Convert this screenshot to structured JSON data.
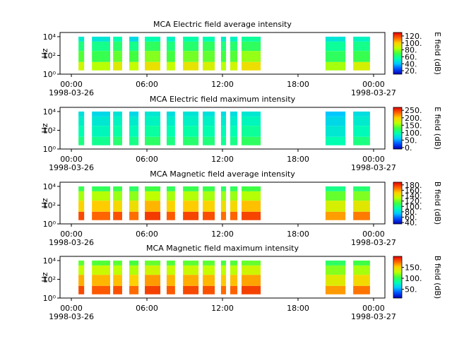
{
  "colormap": [
    "#0000b0",
    "#0050ff",
    "#00c8ff",
    "#00ffb0",
    "#40ff40",
    "#c0ff00",
    "#ffd000",
    "#ff6000",
    "#e00000"
  ],
  "chart_data": [
    {
      "type": "spectrogram",
      "title": "MCA  Electric field average intensity",
      "ylabel": "Hz",
      "colorbar_label": "E field (dB)",
      "log_y": true,
      "xlim": [
        "1998-03-25T23:06",
        "1998-03-27T00:54"
      ],
      "xticks": [
        {
          "value": "1998-03-26T00:00",
          "label": "00:00",
          "date": "1998-03-26"
        },
        {
          "value": "1998-03-26T06:00",
          "label": "06:00"
        },
        {
          "value": "1998-03-26T12:00",
          "label": "12:00"
        },
        {
          "value": "1998-03-26T18:00",
          "label": "18:00"
        },
        {
          "value": "1998-03-27T00:00",
          "label": "00:00",
          "date": "1998-03-27"
        }
      ],
      "ylim": [
        1,
        28000
      ],
      "yticks": [
        {
          "value": 1,
          "label": "10⁰"
        },
        {
          "value": 100,
          "label": "10²"
        },
        {
          "value": 10000,
          "label": "10⁴"
        }
      ],
      "freq_bins": [
        2.5,
        20,
        300,
        3000,
        10000
      ],
      "x_start": [
        "1998-03-26T00:34",
        "1998-03-26T01:38",
        "1998-03-26T03:19",
        "1998-03-26T04:36",
        "1998-03-26T05:50",
        "1998-03-26T07:34",
        "1998-03-26T08:52",
        "1998-03-26T10:26",
        "1998-03-26T11:53",
        "1998-03-26T12:37",
        "1998-03-26T13:31",
        "1998-03-26T20:11",
        "1998-03-26T22:23"
      ],
      "x_end": [
        "1998-03-26T01:01",
        "1998-03-26T03:05",
        "1998-03-26T04:02",
        "1998-03-26T05:20",
        "1998-03-26T07:04",
        "1998-03-26T08:14",
        "1998-03-26T10:06",
        "1998-03-26T11:23",
        "1998-03-26T12:17",
        "1998-03-26T13:11",
        "1998-03-26T15:02",
        "1998-03-26T21:46",
        "1998-03-26T23:43"
      ],
      "z": [
        [
          88,
          72,
          62,
          50
        ],
        [
          84,
          68,
          60,
          48
        ],
        [
          92,
          74,
          64,
          55
        ],
        [
          86,
          70,
          60,
          45
        ],
        [
          95,
          78,
          66,
          55
        ],
        [
          86,
          70,
          62,
          52
        ],
        [
          94,
          76,
          64,
          56
        ],
        [
          90,
          74,
          66,
          55
        ],
        [
          84,
          70,
          62,
          50
        ],
        [
          88,
          72,
          64,
          52
        ],
        [
          96,
          80,
          66,
          58
        ],
        [
          82,
          66,
          58,
          48
        ],
        [
          90,
          68,
          60,
          52
        ]
      ],
      "clim": [
        10,
        130
      ],
      "cticks": [
        {
          "value": 20,
          "label": "20."
        },
        {
          "value": 40,
          "label": "40."
        },
        {
          "value": 60,
          "label": "60."
        },
        {
          "value": 80,
          "label": "80."
        },
        {
          "value": 100,
          "label": "100."
        },
        {
          "value": 120,
          "label": "120."
        }
      ]
    },
    {
      "type": "spectrogram",
      "title": "MCA  Electric field maximum intensity",
      "ylabel": "Hz",
      "colorbar_label": "E field (dB)",
      "log_y": true,
      "xlim": [
        "1998-03-25T23:06",
        "1998-03-27T00:54"
      ],
      "xticks": [
        {
          "value": "1998-03-26T00:00",
          "label": "00:00",
          "date": "1998-03-26"
        },
        {
          "value": "1998-03-26T06:00",
          "label": "06:00"
        },
        {
          "value": "1998-03-26T12:00",
          "label": "12:00"
        },
        {
          "value": "1998-03-26T18:00",
          "label": "18:00"
        },
        {
          "value": "1998-03-27T00:00",
          "label": "00:00",
          "date": "1998-03-27"
        }
      ],
      "ylim": [
        1,
        28000
      ],
      "yticks": [
        {
          "value": 1,
          "label": "10⁰"
        },
        {
          "value": 100,
          "label": "10²"
        },
        {
          "value": 10000,
          "label": "10⁴"
        }
      ],
      "freq_bins": [
        2.5,
        20,
        300,
        3000,
        10000
      ],
      "x_start": [
        "1998-03-26T00:34",
        "1998-03-26T01:38",
        "1998-03-26T03:19",
        "1998-03-26T04:36",
        "1998-03-26T05:50",
        "1998-03-26T07:34",
        "1998-03-26T08:52",
        "1998-03-26T10:26",
        "1998-03-26T11:53",
        "1998-03-26T12:37",
        "1998-03-26T13:31",
        "1998-03-26T20:11",
        "1998-03-26T22:23"
      ],
      "x_end": [
        "1998-03-26T01:01",
        "1998-03-26T03:05",
        "1998-03-26T04:02",
        "1998-03-26T05:20",
        "1998-03-26T07:04",
        "1998-03-26T08:14",
        "1998-03-26T10:06",
        "1998-03-26T11:23",
        "1998-03-26T12:17",
        "1998-03-26T13:11",
        "1998-03-26T15:02",
        "1998-03-26T21:46",
        "1998-03-26T23:43"
      ],
      "z": [
        [
          110,
          95,
          85,
          75
        ],
        [
          105,
          90,
          80,
          70
        ],
        [
          115,
          98,
          88,
          78
        ],
        [
          108,
          92,
          82,
          70
        ],
        [
          118,
          100,
          88,
          80
        ],
        [
          110,
          95,
          84,
          74
        ],
        [
          116,
          98,
          86,
          78
        ],
        [
          112,
          96,
          86,
          76
        ],
        [
          104,
          92,
          82,
          72
        ],
        [
          108,
          94,
          84,
          74
        ],
        [
          120,
          102,
          90,
          80
        ],
        [
          95,
          80,
          70,
          60
        ],
        [
          110,
          92,
          82,
          74
        ]
      ],
      "clim": [
        -10,
        270
      ],
      "cticks": [
        {
          "value": 0,
          "label": "0."
        },
        {
          "value": 50,
          "label": "50."
        },
        {
          "value": 100,
          "label": "100."
        },
        {
          "value": 150,
          "label": "150."
        },
        {
          "value": 200,
          "label": "200."
        },
        {
          "value": 250,
          "label": "250."
        }
      ]
    },
    {
      "type": "spectrogram",
      "title": "MCA  Magnetic field average intensity",
      "ylabel": "Hz",
      "colorbar_label": "B field (dB)",
      "log_y": true,
      "xlim": [
        "1998-03-25T23:06",
        "1998-03-27T00:54"
      ],
      "xticks": [
        {
          "value": "1998-03-26T00:00",
          "label": "00:00",
          "date": "1998-03-26"
        },
        {
          "value": "1998-03-26T06:00",
          "label": "06:00"
        },
        {
          "value": "1998-03-26T12:00",
          "label": "12:00"
        },
        {
          "value": "1998-03-26T18:00",
          "label": "18:00"
        },
        {
          "value": "1998-03-27T00:00",
          "label": "00:00",
          "date": "1998-03-27"
        }
      ],
      "ylim": [
        1,
        28000
      ],
      "yticks": [
        {
          "value": 1,
          "label": "10⁰"
        },
        {
          "value": 100,
          "label": "10²"
        },
        {
          "value": 10000,
          "label": "10⁴"
        }
      ],
      "freq_bins": [
        2.5,
        20,
        300,
        3000,
        10000
      ],
      "x_start": [
        "1998-03-26T00:34",
        "1998-03-26T01:38",
        "1998-03-26T03:19",
        "1998-03-26T04:36",
        "1998-03-26T05:50",
        "1998-03-26T07:34",
        "1998-03-26T08:52",
        "1998-03-26T10:26",
        "1998-03-26T11:53",
        "1998-03-26T12:37",
        "1998-03-26T13:31",
        "1998-03-26T20:11",
        "1998-03-26T22:23"
      ],
      "x_end": [
        "1998-03-26T01:01",
        "1998-03-26T03:05",
        "1998-03-26T04:02",
        "1998-03-26T05:20",
        "1998-03-26T07:04",
        "1998-03-26T08:14",
        "1998-03-26T10:06",
        "1998-03-26T11:23",
        "1998-03-26T12:17",
        "1998-03-26T13:11",
        "1998-03-26T15:02",
        "1998-03-26T21:46",
        "1998-03-26T23:43"
      ],
      "z": [
        [
          175,
          150,
          128,
          110
        ],
        [
          170,
          152,
          130,
          108
        ],
        [
          174,
          148,
          126,
          110
        ],
        [
          168,
          146,
          124,
          106
        ],
        [
          178,
          156,
          132,
          112
        ],
        [
          172,
          150,
          128,
          108
        ],
        [
          176,
          152,
          130,
          110
        ],
        [
          174,
          150,
          128,
          110
        ],
        [
          168,
          146,
          126,
          106
        ],
        [
          170,
          148,
          126,
          108
        ],
        [
          176,
          154,
          130,
          112
        ],
        [
          160,
          138,
          118,
          100
        ],
        [
          166,
          142,
          122,
          104
        ]
      ],
      "clim": [
        35,
        190
      ],
      "cticks": [
        {
          "value": 40,
          "label": "40."
        },
        {
          "value": 60,
          "label": "60."
        },
        {
          "value": 80,
          "label": "80."
        },
        {
          "value": 100,
          "label": "100."
        },
        {
          "value": 120,
          "label": "120."
        },
        {
          "value": 140,
          "label": "140."
        },
        {
          "value": 160,
          "label": "160."
        },
        {
          "value": 180,
          "label": "180."
        }
      ]
    },
    {
      "type": "spectrogram",
      "title": "MCA  Magnetic field maximum intensity",
      "ylabel": "Hz",
      "colorbar_label": "B field (dB)",
      "log_y": true,
      "xlim": [
        "1998-03-25T23:06",
        "1998-03-27T00:54"
      ],
      "xticks": [
        {
          "value": "1998-03-26T00:00",
          "label": "00:00",
          "date": "1998-03-26"
        },
        {
          "value": "1998-03-26T06:00",
          "label": "06:00"
        },
        {
          "value": "1998-03-26T12:00",
          "label": "12:00"
        },
        {
          "value": "1998-03-26T18:00",
          "label": "18:00"
        },
        {
          "value": "1998-03-27T00:00",
          "label": "00:00",
          "date": "1998-03-27"
        }
      ],
      "ylim": [
        1,
        28000
      ],
      "yticks": [
        {
          "value": 1,
          "label": "10⁰"
        },
        {
          "value": 100,
          "label": "10²"
        },
        {
          "value": 10000,
          "label": "10⁴"
        }
      ],
      "freq_bins": [
        2.5,
        20,
        300,
        3000,
        10000
      ],
      "x_start": [
        "1998-03-26T00:34",
        "1998-03-26T01:38",
        "1998-03-26T03:19",
        "1998-03-26T04:36",
        "1998-03-26T05:50",
        "1998-03-26T07:34",
        "1998-03-26T08:52",
        "1998-03-26T10:26",
        "1998-03-26T11:53",
        "1998-03-26T12:37",
        "1998-03-26T13:31",
        "1998-03-26T20:11",
        "1998-03-26T22:23"
      ],
      "x_end": [
        "1998-03-26T01:01",
        "1998-03-26T03:05",
        "1998-03-26T04:02",
        "1998-03-26T05:20",
        "1998-03-26T07:04",
        "1998-03-26T08:14",
        "1998-03-26T10:06",
        "1998-03-26T11:23",
        "1998-03-26T12:17",
        "1998-03-26T13:11",
        "1998-03-26T15:02",
        "1998-03-26T21:46",
        "1998-03-26T23:43"
      ],
      "z": [
        [
          182,
          160,
          130,
          110
        ],
        [
          178,
          158,
          132,
          108
        ],
        [
          180,
          156,
          128,
          110
        ],
        [
          174,
          152,
          126,
          106
        ],
        [
          184,
          164,
          134,
          112
        ],
        [
          178,
          158,
          130,
          108
        ],
        [
          182,
          160,
          132,
          110
        ],
        [
          180,
          158,
          130,
          110
        ],
        [
          174,
          154,
          128,
          106
        ],
        [
          176,
          156,
          128,
          108
        ],
        [
          184,
          162,
          134,
          112
        ],
        [
          164,
          140,
          118,
          98
        ],
        [
          172,
          148,
          124,
          104
        ]
      ],
      "clim": [
        10,
        200
      ],
      "cticks": [
        {
          "value": 50,
          "label": "50."
        },
        {
          "value": 100,
          "label": "100."
        },
        {
          "value": 150,
          "label": "150."
        }
      ]
    }
  ]
}
